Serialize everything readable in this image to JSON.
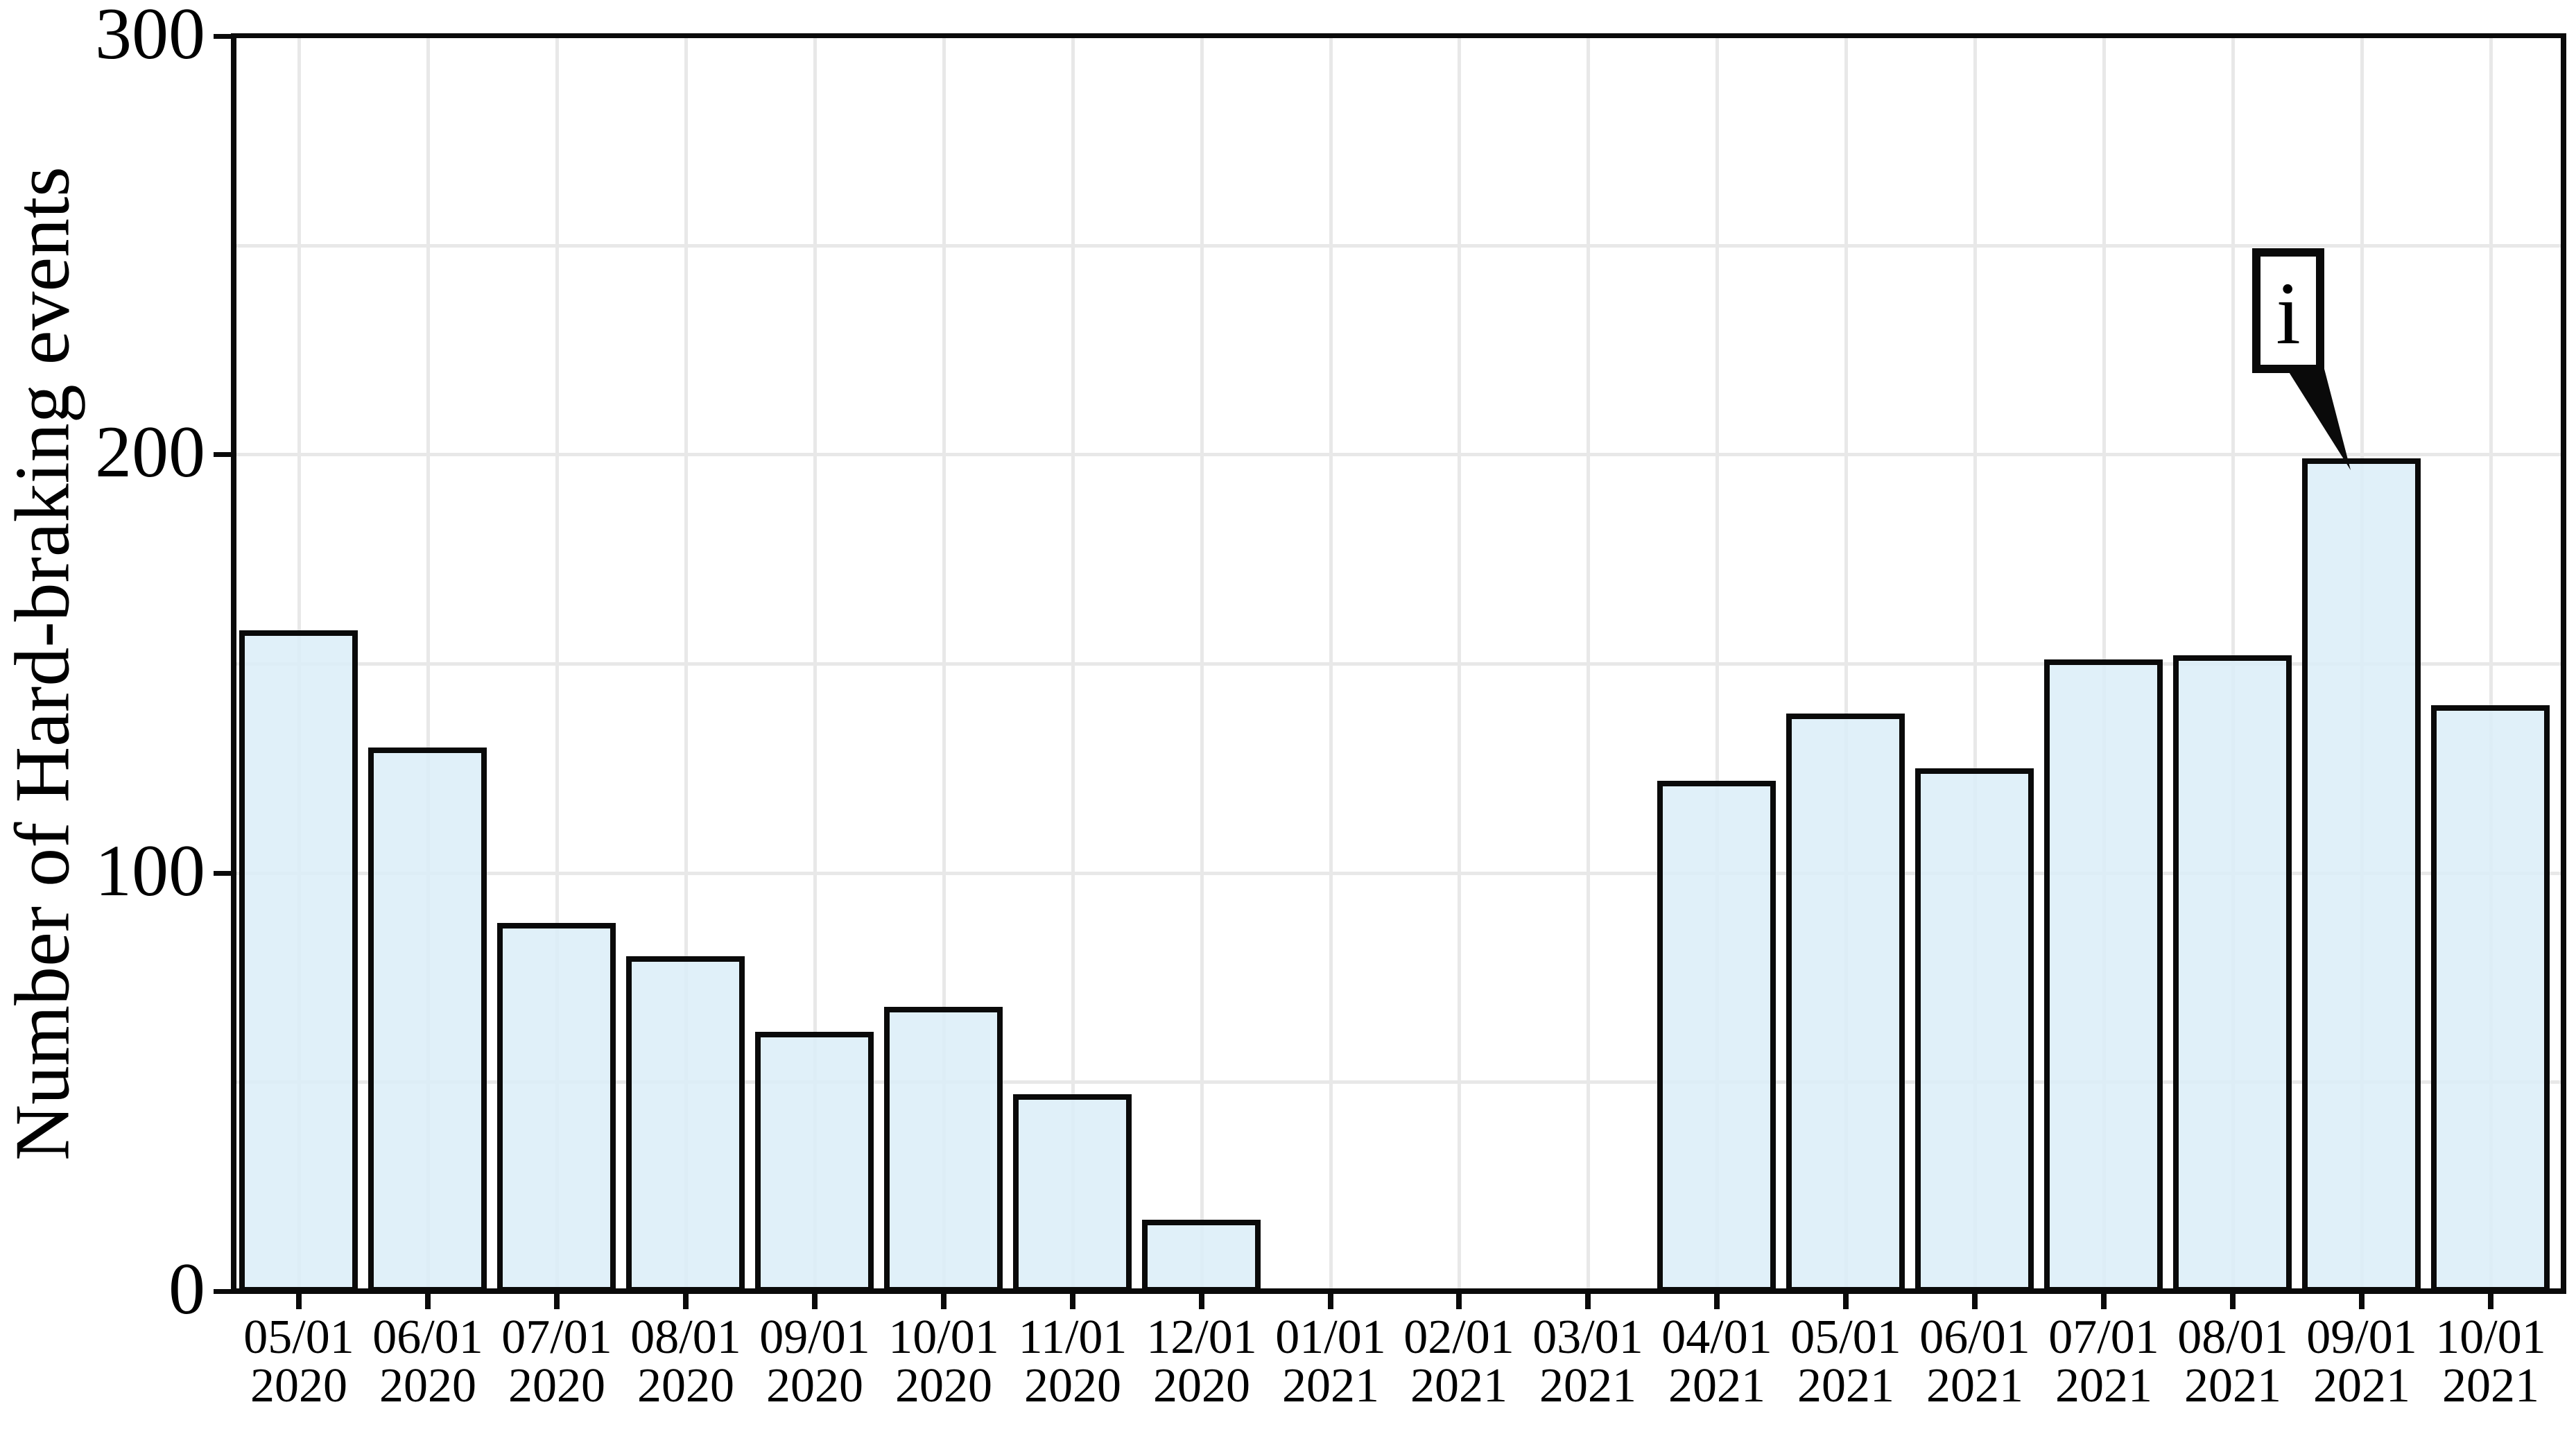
{
  "chart_data": {
    "type": "bar",
    "ylabel": "Number of Hard-braking events",
    "ylim": [
      0,
      300
    ],
    "yticks": [
      0,
      100,
      200,
      300
    ],
    "grid": true,
    "grid_interval": 50,
    "legend": false,
    "categories": [
      {
        "date": "05/01",
        "year": "2020"
      },
      {
        "date": "06/01",
        "year": "2020"
      },
      {
        "date": "07/01",
        "year": "2020"
      },
      {
        "date": "08/01",
        "year": "2020"
      },
      {
        "date": "09/01",
        "year": "2020"
      },
      {
        "date": "10/01",
        "year": "2020"
      },
      {
        "date": "11/01",
        "year": "2020"
      },
      {
        "date": "12/01",
        "year": "2020"
      },
      {
        "date": "01/01",
        "year": "2021"
      },
      {
        "date": "02/01",
        "year": "2021"
      },
      {
        "date": "03/01",
        "year": "2021"
      },
      {
        "date": "04/01",
        "year": "2021"
      },
      {
        "date": "05/01",
        "year": "2021"
      },
      {
        "date": "06/01",
        "year": "2021"
      },
      {
        "date": "07/01",
        "year": "2021"
      },
      {
        "date": "08/01",
        "year": "2021"
      },
      {
        "date": "09/01",
        "year": "2021"
      },
      {
        "date": "10/01",
        "year": "2021"
      }
    ],
    "values": [
      157,
      129,
      87,
      79,
      61,
      67,
      46,
      16,
      0,
      0,
      0,
      121,
      137,
      124,
      150,
      151,
      198,
      139
    ],
    "annotation": {
      "text": "i",
      "target_category": "09/01 2021",
      "target_value": 198
    },
    "colors": {
      "bar_fill": "#dbedf8",
      "bar_edge": "#0a0a0a",
      "gridline": "#e8e8e8",
      "axis": "#0a0a0a",
      "background": "#ffffff"
    }
  }
}
